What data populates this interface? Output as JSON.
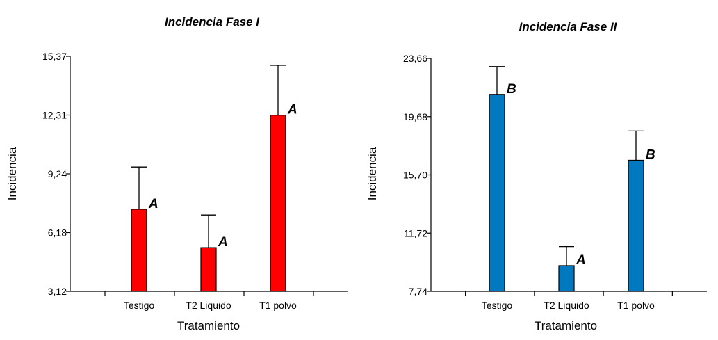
{
  "chart_data": [
    {
      "type": "bar",
      "title": "Incidencia Fase I",
      "xlabel": "Tratamiento",
      "ylabel": "Incidencia",
      "ylim": [
        3.12,
        15.37
      ],
      "yticks": [
        "3,12",
        "6,18",
        "9,24",
        "12,31",
        "15,37"
      ],
      "categories": [
        "Testigo",
        "T2 Liquido",
        "T1 polvo"
      ],
      "values": [
        7.4,
        5.4,
        12.3
      ],
      "error_upper": [
        9.6,
        7.1,
        14.9
      ],
      "letters": [
        "A",
        "A",
        "A"
      ],
      "color": "#ff0000"
    },
    {
      "type": "bar",
      "title": "Incidencia Fase II",
      "xlabel": "Tratamiento",
      "ylabel": "Incidencia",
      "ylim": [
        7.74,
        23.66
      ],
      "yticks": [
        "7,74",
        "11,72",
        "15,70",
        "19,68",
        "23,66"
      ],
      "categories": [
        "Testigo",
        "T2 Liquido",
        "T1 polvo"
      ],
      "values": [
        21.2,
        9.5,
        16.7
      ],
      "error_upper": [
        23.1,
        10.8,
        18.7
      ],
      "letters": [
        "B",
        "A",
        "B"
      ],
      "color": "#0079c1"
    }
  ]
}
